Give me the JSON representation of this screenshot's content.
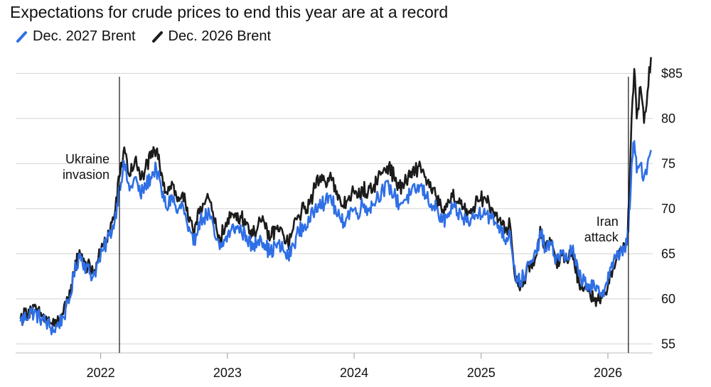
{
  "chart_data": {
    "type": "line",
    "title": "Expectations for crude prices to end this year are at a record",
    "xlabel": "",
    "ylabel": "",
    "x_ticks": [
      "2022",
      "2023",
      "2024",
      "2025",
      "2026"
    ],
    "y_ticks": [
      {
        "value": 85,
        "label": "$85"
      },
      {
        "value": 80,
        "label": "80"
      },
      {
        "value": 75,
        "label": "75"
      },
      {
        "value": 70,
        "label": "70"
      },
      {
        "value": 65,
        "label": "65"
      },
      {
        "value": 60,
        "label": "60"
      },
      {
        "value": 55,
        "label": "55"
      }
    ],
    "ylim": [
      54,
      87
    ],
    "xlim": [
      "2021-05-01",
      "2026-05-10"
    ],
    "grid": "horizontal",
    "legend_position": "top-left",
    "annotations": [
      {
        "date": "2022-02-24",
        "label_lines": [
          "Ukraine",
          "invasion"
        ]
      },
      {
        "date": "2026-03-01",
        "label_lines": [
          "Iran",
          "attack"
        ]
      }
    ],
    "series": [
      {
        "name": "Dec. 2027 Brent",
        "color": "#2f6fe6",
        "points": [
          [
            "2021-05-15",
            57.5
          ],
          [
            "2021-06-15",
            58.6
          ],
          [
            "2021-07-15",
            57.8
          ],
          [
            "2021-08-20",
            56.5
          ],
          [
            "2021-09-15",
            58.0
          ],
          [
            "2021-10-01",
            59.5
          ],
          [
            "2021-10-15",
            62.5
          ],
          [
            "2021-11-01",
            65.0
          ],
          [
            "2021-11-20",
            63.5
          ],
          [
            "2021-12-10",
            62.5
          ],
          [
            "2021-12-25",
            64.0
          ],
          [
            "2022-01-10",
            65.5
          ],
          [
            "2022-01-25",
            67.0
          ],
          [
            "2022-02-10",
            68.5
          ],
          [
            "2022-02-24",
            72.5
          ],
          [
            "2022-03-10",
            75.0
          ],
          [
            "2022-03-25",
            72.0
          ],
          [
            "2022-04-10",
            73.5
          ],
          [
            "2022-04-25",
            71.5
          ],
          [
            "2022-05-10",
            72.5
          ],
          [
            "2022-05-25",
            73.5
          ],
          [
            "2022-06-10",
            74.5
          ],
          [
            "2022-06-25",
            72.0
          ],
          [
            "2022-07-10",
            70.0
          ],
          [
            "2022-07-25",
            71.5
          ],
          [
            "2022-08-10",
            69.5
          ],
          [
            "2022-08-25",
            70.5
          ],
          [
            "2022-09-10",
            67.5
          ],
          [
            "2022-09-25",
            66.0
          ],
          [
            "2022-10-10",
            68.5
          ],
          [
            "2022-10-25",
            69.0
          ],
          [
            "2022-11-10",
            69.5
          ],
          [
            "2022-11-25",
            67.0
          ],
          [
            "2022-12-10",
            65.5
          ],
          [
            "2022-12-25",
            66.5
          ],
          [
            "2023-01-10",
            67.5
          ],
          [
            "2023-01-25",
            68.0
          ],
          [
            "2023-02-10",
            67.5
          ],
          [
            "2023-02-25",
            67.0
          ],
          [
            "2023-03-15",
            65.5
          ],
          [
            "2023-04-05",
            67.0
          ],
          [
            "2023-04-20",
            66.0
          ],
          [
            "2023-05-05",
            65.0
          ],
          [
            "2023-05-20",
            66.0
          ],
          [
            "2023-06-10",
            65.5
          ],
          [
            "2023-06-25",
            64.5
          ],
          [
            "2023-07-10",
            66.0
          ],
          [
            "2023-07-25",
            67.5
          ],
          [
            "2023-08-10",
            68.0
          ],
          [
            "2023-08-25",
            68.5
          ],
          [
            "2023-09-10",
            70.0
          ],
          [
            "2023-09-25",
            71.0
          ],
          [
            "2023-10-10",
            70.5
          ],
          [
            "2023-10-25",
            71.5
          ],
          [
            "2023-11-10",
            69.5
          ],
          [
            "2023-11-25",
            68.5
          ],
          [
            "2023-12-10",
            69.0
          ],
          [
            "2023-12-25",
            70.0
          ],
          [
            "2024-01-10",
            69.5
          ],
          [
            "2024-01-25",
            70.5
          ],
          [
            "2024-02-10",
            70.0
          ],
          [
            "2024-02-25",
            70.5
          ],
          [
            "2024-03-10",
            71.5
          ],
          [
            "2024-03-25",
            72.0
          ],
          [
            "2024-04-10",
            72.5
          ],
          [
            "2024-04-25",
            71.5
          ],
          [
            "2024-05-10",
            70.5
          ],
          [
            "2024-05-25",
            71.0
          ],
          [
            "2024-06-10",
            71.5
          ],
          [
            "2024-06-25",
            72.0
          ],
          [
            "2024-07-10",
            72.5
          ],
          [
            "2024-07-25",
            71.5
          ],
          [
            "2024-08-10",
            70.5
          ],
          [
            "2024-08-25",
            70.0
          ],
          [
            "2024-09-10",
            68.5
          ],
          [
            "2024-09-25",
            69.0
          ],
          [
            "2024-10-10",
            70.0
          ],
          [
            "2024-10-25",
            69.5
          ],
          [
            "2024-11-10",
            69.0
          ],
          [
            "2024-11-25",
            68.5
          ],
          [
            "2024-12-10",
            69.0
          ],
          [
            "2024-12-25",
            69.5
          ],
          [
            "2025-01-10",
            70.0
          ],
          [
            "2025-01-25",
            69.0
          ],
          [
            "2025-02-10",
            68.5
          ],
          [
            "2025-02-25",
            68.0
          ],
          [
            "2025-03-10",
            66.5
          ],
          [
            "2025-03-25",
            67.5
          ],
          [
            "2025-04-10",
            62.5
          ],
          [
            "2025-04-25",
            62.0
          ],
          [
            "2025-05-10",
            63.0
          ],
          [
            "2025-05-25",
            64.0
          ],
          [
            "2025-06-10",
            65.0
          ],
          [
            "2025-06-20",
            67.5
          ],
          [
            "2025-07-05",
            65.5
          ],
          [
            "2025-07-20",
            66.0
          ],
          [
            "2025-08-05",
            64.5
          ],
          [
            "2025-08-20",
            65.0
          ],
          [
            "2025-09-05",
            64.5
          ],
          [
            "2025-09-20",
            65.5
          ],
          [
            "2025-10-10",
            62.5
          ],
          [
            "2025-10-25",
            62.0
          ],
          [
            "2025-11-10",
            61.5
          ],
          [
            "2025-11-25",
            61.0
          ],
          [
            "2025-12-10",
            60.5
          ],
          [
            "2025-12-25",
            61.5
          ],
          [
            "2026-01-10",
            63.5
          ],
          [
            "2026-01-25",
            64.5
          ],
          [
            "2026-02-10",
            65.5
          ],
          [
            "2026-02-25",
            66.0
          ],
          [
            "2026-03-05",
            70.0
          ],
          [
            "2026-03-12",
            75.5
          ],
          [
            "2026-03-18",
            77.5
          ],
          [
            "2026-03-25",
            74.0
          ],
          [
            "2026-04-05",
            75.0
          ],
          [
            "2026-04-15",
            73.5
          ],
          [
            "2026-04-25",
            75.0
          ],
          [
            "2026-05-05",
            76.5
          ]
        ]
      },
      {
        "name": "Dec. 2026 Brent",
        "color": "#1c1c1c",
        "points": [
          [
            "2021-05-15",
            57.8
          ],
          [
            "2021-06-15",
            58.9
          ],
          [
            "2021-07-15",
            58.1
          ],
          [
            "2021-08-20",
            57.0
          ],
          [
            "2021-09-15",
            58.3
          ],
          [
            "2021-10-01",
            59.9
          ],
          [
            "2021-10-15",
            62.9
          ],
          [
            "2021-11-01",
            65.4
          ],
          [
            "2021-11-20",
            63.9
          ],
          [
            "2021-12-10",
            62.9
          ],
          [
            "2021-12-25",
            64.4
          ],
          [
            "2022-01-10",
            66.0
          ],
          [
            "2022-01-25",
            67.5
          ],
          [
            "2022-02-10",
            69.3
          ],
          [
            "2022-02-24",
            73.5
          ],
          [
            "2022-03-10",
            76.8
          ],
          [
            "2022-03-25",
            73.6
          ],
          [
            "2022-04-10",
            75.5
          ],
          [
            "2022-04-25",
            73.2
          ],
          [
            "2022-05-10",
            74.5
          ],
          [
            "2022-05-25",
            75.6
          ],
          [
            "2022-06-10",
            76.5
          ],
          [
            "2022-06-25",
            74.0
          ],
          [
            "2022-07-10",
            71.8
          ],
          [
            "2022-07-25",
            73.0
          ],
          [
            "2022-08-10",
            70.8
          ],
          [
            "2022-08-25",
            71.8
          ],
          [
            "2022-09-10",
            68.8
          ],
          [
            "2022-09-25",
            67.3
          ],
          [
            "2022-10-10",
            70.0
          ],
          [
            "2022-10-25",
            70.5
          ],
          [
            "2022-11-10",
            71.0
          ],
          [
            "2022-11-25",
            68.4
          ],
          [
            "2022-12-10",
            66.8
          ],
          [
            "2022-12-25",
            67.8
          ],
          [
            "2023-01-10",
            69.0
          ],
          [
            "2023-01-25",
            69.5
          ],
          [
            "2023-02-10",
            69.0
          ],
          [
            "2023-02-25",
            68.5
          ],
          [
            "2023-03-15",
            67.0
          ],
          [
            "2023-04-05",
            68.8
          ],
          [
            "2023-04-20",
            67.8
          ],
          [
            "2023-05-05",
            66.8
          ],
          [
            "2023-05-20",
            67.8
          ],
          [
            "2023-06-10",
            67.2
          ],
          [
            "2023-06-25",
            66.0
          ],
          [
            "2023-07-10",
            67.8
          ],
          [
            "2023-07-25",
            69.3
          ],
          [
            "2023-08-10",
            70.0
          ],
          [
            "2023-08-25",
            70.5
          ],
          [
            "2023-09-10",
            72.3
          ],
          [
            "2023-09-25",
            73.6
          ],
          [
            "2023-10-10",
            73.0
          ],
          [
            "2023-10-25",
            74.0
          ],
          [
            "2023-11-10",
            71.6
          ],
          [
            "2023-11-25",
            70.3
          ],
          [
            "2023-12-10",
            70.8
          ],
          [
            "2023-12-25",
            71.8
          ],
          [
            "2024-01-10",
            71.2
          ],
          [
            "2024-01-25",
            72.3
          ],
          [
            "2024-02-10",
            71.8
          ],
          [
            "2024-02-25",
            72.3
          ],
          [
            "2024-03-10",
            73.5
          ],
          [
            "2024-03-25",
            74.2
          ],
          [
            "2024-04-10",
            74.8
          ],
          [
            "2024-04-25",
            73.5
          ],
          [
            "2024-05-10",
            72.3
          ],
          [
            "2024-05-25",
            72.8
          ],
          [
            "2024-06-10",
            73.5
          ],
          [
            "2024-06-25",
            74.2
          ],
          [
            "2024-07-10",
            74.8
          ],
          [
            "2024-07-25",
            73.5
          ],
          [
            "2024-08-10",
            72.0
          ],
          [
            "2024-08-25",
            71.3
          ],
          [
            "2024-09-10",
            69.6
          ],
          [
            "2024-09-25",
            70.2
          ],
          [
            "2024-10-10",
            71.3
          ],
          [
            "2024-10-25",
            70.8
          ],
          [
            "2024-11-10",
            70.2
          ],
          [
            "2024-11-25",
            69.6
          ],
          [
            "2024-12-10",
            70.2
          ],
          [
            "2024-12-25",
            70.8
          ],
          [
            "2025-01-10",
            71.3
          ],
          [
            "2025-01-25",
            70.2
          ],
          [
            "2025-02-10",
            69.6
          ],
          [
            "2025-02-25",
            69.0
          ],
          [
            "2025-03-10",
            67.3
          ],
          [
            "2025-03-25",
            68.3
          ],
          [
            "2025-04-10",
            62.0
          ],
          [
            "2025-04-25",
            61.5
          ],
          [
            "2025-05-10",
            62.6
          ],
          [
            "2025-05-25",
            63.8
          ],
          [
            "2025-06-10",
            64.9
          ],
          [
            "2025-06-20",
            68.0
          ],
          [
            "2025-07-05",
            65.5
          ],
          [
            "2025-07-20",
            66.0
          ],
          [
            "2025-08-05",
            64.2
          ],
          [
            "2025-08-20",
            64.8
          ],
          [
            "2025-09-05",
            64.2
          ],
          [
            "2025-09-20",
            65.3
          ],
          [
            "2025-10-10",
            61.8
          ],
          [
            "2025-10-25",
            61.2
          ],
          [
            "2025-11-10",
            60.7
          ],
          [
            "2025-11-25",
            60.1
          ],
          [
            "2025-12-10",
            59.5
          ],
          [
            "2025-12-25",
            60.7
          ],
          [
            "2026-01-10",
            63.0
          ],
          [
            "2026-01-25",
            64.3
          ],
          [
            "2026-02-10",
            65.5
          ],
          [
            "2026-02-25",
            66.2
          ],
          [
            "2026-03-05",
            73.0
          ],
          [
            "2026-03-12",
            81.5
          ],
          [
            "2026-03-18",
            85.5
          ],
          [
            "2026-03-25",
            80.0
          ],
          [
            "2026-04-05",
            83.5
          ],
          [
            "2026-04-15",
            79.5
          ],
          [
            "2026-04-25",
            83.0
          ],
          [
            "2026-05-05",
            86.8
          ]
        ]
      }
    ]
  }
}
